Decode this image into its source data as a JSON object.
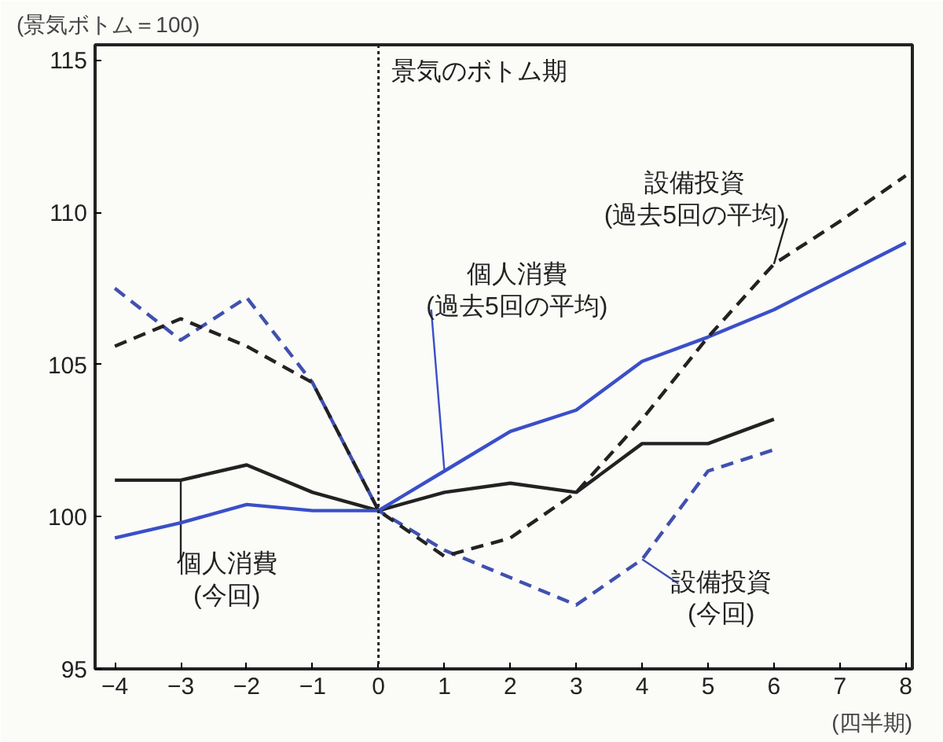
{
  "chart_data": {
    "type": "line",
    "ylabel": "(景気ボトム＝100)",
    "xlabel": "(四半期)",
    "x": [
      -4,
      -3,
      -2,
      -1,
      0,
      1,
      2,
      3,
      4,
      5,
      6,
      7,
      8
    ],
    "xlim": [
      -4.3,
      8.1
    ],
    "xticks": [
      -4,
      -3,
      -2,
      -1,
      0,
      1,
      2,
      3,
      4,
      5,
      6,
      7,
      8
    ],
    "ylim": [
      95,
      115.5
    ],
    "yticks": [
      95,
      100,
      105,
      110,
      115
    ],
    "grid": false,
    "marker": "none",
    "series": [
      {
        "name": "個人消費\n(今回)",
        "color": "#222222",
        "line_style": "solid",
        "values": [
          101.2,
          101.2,
          101.7,
          100.8,
          100.2,
          100.8,
          101.1,
          100.8,
          102.4,
          102.4,
          103.2,
          null,
          null
        ]
      },
      {
        "name": "設備投資\n(今回)",
        "color": "#4050b0",
        "line_style": "dashed",
        "values": [
          107.5,
          105.8,
          107.2,
          104.4,
          100.2,
          98.9,
          98.0,
          97.1,
          98.6,
          101.5,
          102.2,
          null,
          null
        ]
      },
      {
        "name": "個人消費\n(過去5回の平均)",
        "color": "#3a4fc8",
        "line_style": "solid",
        "values": [
          99.3,
          99.8,
          100.4,
          100.2,
          100.2,
          101.5,
          102.8,
          103.5,
          105.1,
          105.9,
          106.8,
          107.9,
          109.0
        ]
      },
      {
        "name": "設備投資\n(過去5回の平均)",
        "color": "#222222",
        "line_style": "dashed",
        "values": [
          105.6,
          106.5,
          105.6,
          104.4,
          100.2,
          98.7,
          99.3,
          100.8,
          103.2,
          105.9,
          108.3,
          109.7,
          111.2
        ]
      }
    ],
    "ref_lines": [
      {
        "axis": "x",
        "value": 0,
        "label": "景気のボトム期",
        "line_style": "dotted",
        "color": "#222222"
      }
    ]
  }
}
